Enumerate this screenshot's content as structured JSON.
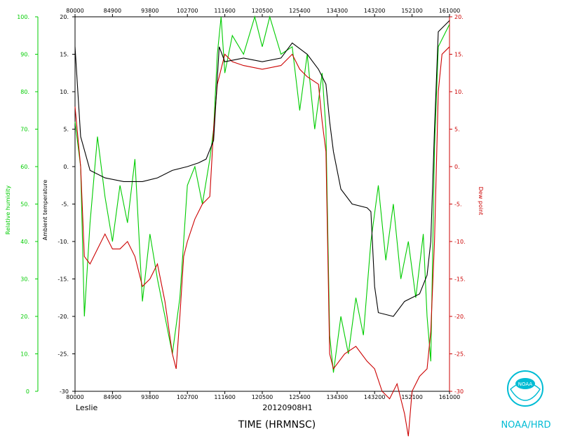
{
  "chart_data": {
    "type": "line",
    "storm_name": "Leslie",
    "flight_id": "20120908H1",
    "xlabel": "TIME (HRMNSC)",
    "org_label": "NOAA/HRD",
    "logo_text": "NOAA",
    "xlim": [
      80000,
      161000
    ],
    "x_ticks": [
      "80000",
      "84900",
      "93800",
      "102700",
      "111600",
      "120500",
      "125400",
      "134300",
      "143200",
      "152100",
      "161000"
    ],
    "rh_axis": {
      "label": "Relative humidity",
      "ylim": [
        0,
        100
      ],
      "ticks": [
        "0",
        "10.",
        "20.",
        "30.",
        "40.",
        "50.",
        "60.",
        "70.",
        "80.",
        "90.",
        "100."
      ],
      "color": "#00cc00"
    },
    "temp_axis": {
      "label": "Ambient temperature",
      "ylim": [
        -30,
        20
      ],
      "ticks": [
        "-30",
        "-25.",
        "-20.",
        "-15.",
        "-10.",
        "-5.",
        "0.",
        "5.",
        "10.",
        "15.",
        "20."
      ],
      "color": "#000000"
    },
    "dew_axis": {
      "label": "Dew point",
      "ylim": [
        -30,
        20
      ],
      "ticks": [
        "-30",
        "-25.",
        "-20.",
        "-15.",
        "-10.",
        "-5.",
        "0.",
        "5.",
        "10.",
        "15.",
        "20."
      ],
      "color": "#cc0000"
    },
    "series": [
      {
        "axis": "temp",
        "color": "#000000",
        "points": [
          [
            0,
            16
          ],
          [
            0.015,
            4
          ],
          [
            0.04,
            -0.5
          ],
          [
            0.08,
            -1.5
          ],
          [
            0.13,
            -2
          ],
          [
            0.18,
            -2
          ],
          [
            0.22,
            -1.5
          ],
          [
            0.26,
            -0.5
          ],
          [
            0.3,
            0
          ],
          [
            0.33,
            0.5
          ],
          [
            0.35,
            1
          ],
          [
            0.37,
            3.5
          ],
          [
            0.385,
            16
          ],
          [
            0.4,
            14
          ],
          [
            0.45,
            14.5
          ],
          [
            0.5,
            14
          ],
          [
            0.55,
            14.5
          ],
          [
            0.58,
            16.5
          ],
          [
            0.62,
            15
          ],
          [
            0.65,
            13
          ],
          [
            0.67,
            11
          ],
          [
            0.68,
            6
          ],
          [
            0.69,
            2
          ],
          [
            0.71,
            -3
          ],
          [
            0.74,
            -5
          ],
          [
            0.78,
            -5.5
          ],
          [
            0.79,
            -6
          ],
          [
            0.8,
            -16
          ],
          [
            0.81,
            -19.5
          ],
          [
            0.85,
            -20
          ],
          [
            0.88,
            -18
          ],
          [
            0.92,
            -17
          ],
          [
            0.94,
            -14.5
          ],
          [
            0.95,
            -10
          ],
          [
            0.96,
            5
          ],
          [
            0.97,
            18
          ],
          [
            1.0,
            19.5
          ]
        ]
      },
      {
        "axis": "dew",
        "color": "#cc0000",
        "points": [
          [
            0,
            8
          ],
          [
            0.015,
            0
          ],
          [
            0.025,
            -12
          ],
          [
            0.04,
            -13
          ],
          [
            0.06,
            -11
          ],
          [
            0.08,
            -9
          ],
          [
            0.1,
            -11
          ],
          [
            0.12,
            -11
          ],
          [
            0.14,
            -10
          ],
          [
            0.16,
            -12
          ],
          [
            0.18,
            -16
          ],
          [
            0.2,
            -15
          ],
          [
            0.22,
            -13
          ],
          [
            0.24,
            -18
          ],
          [
            0.26,
            -25
          ],
          [
            0.27,
            -27
          ],
          [
            0.28,
            -20
          ],
          [
            0.29,
            -12
          ],
          [
            0.3,
            -10
          ],
          [
            0.32,
            -7
          ],
          [
            0.34,
            -5
          ],
          [
            0.36,
            -4
          ],
          [
            0.37,
            5
          ],
          [
            0.38,
            11
          ],
          [
            0.4,
            15
          ],
          [
            0.42,
            14
          ],
          [
            0.45,
            13.5
          ],
          [
            0.5,
            13
          ],
          [
            0.55,
            13.5
          ],
          [
            0.58,
            15
          ],
          [
            0.6,
            13
          ],
          [
            0.62,
            12
          ],
          [
            0.65,
            11
          ],
          [
            0.66,
            6
          ],
          [
            0.67,
            2
          ],
          [
            0.68,
            -25
          ],
          [
            0.69,
            -27
          ],
          [
            0.72,
            -25
          ],
          [
            0.75,
            -24
          ],
          [
            0.78,
            -26
          ],
          [
            0.8,
            -27
          ],
          [
            0.82,
            -30
          ],
          [
            0.84,
            -31
          ],
          [
            0.86,
            -29
          ],
          [
            0.88,
            -33
          ],
          [
            0.89,
            -36
          ],
          [
            0.9,
            -30
          ],
          [
            0.92,
            -28
          ],
          [
            0.94,
            -27
          ],
          [
            0.95,
            -22
          ],
          [
            0.96,
            -10
          ],
          [
            0.97,
            10
          ],
          [
            0.98,
            15
          ],
          [
            1.0,
            16
          ]
        ]
      },
      {
        "axis": "rh",
        "color": "#00cc00",
        "points": [
          [
            0,
            72
          ],
          [
            0.015,
            60
          ],
          [
            0.025,
            20
          ],
          [
            0.04,
            45
          ],
          [
            0.06,
            68
          ],
          [
            0.08,
            52
          ],
          [
            0.1,
            40
          ],
          [
            0.12,
            55
          ],
          [
            0.14,
            45
          ],
          [
            0.16,
            62
          ],
          [
            0.18,
            24
          ],
          [
            0.2,
            42
          ],
          [
            0.22,
            30
          ],
          [
            0.24,
            20
          ],
          [
            0.26,
            10
          ],
          [
            0.28,
            25
          ],
          [
            0.29,
            40
          ],
          [
            0.3,
            55
          ],
          [
            0.32,
            60
          ],
          [
            0.34,
            50
          ],
          [
            0.36,
            62
          ],
          [
            0.37,
            70
          ],
          [
            0.38,
            90
          ],
          [
            0.39,
            100
          ],
          [
            0.4,
            85
          ],
          [
            0.42,
            95
          ],
          [
            0.45,
            90
          ],
          [
            0.48,
            100
          ],
          [
            0.5,
            92
          ],
          [
            0.52,
            100
          ],
          [
            0.55,
            90
          ],
          [
            0.58,
            92
          ],
          [
            0.6,
            75
          ],
          [
            0.62,
            90
          ],
          [
            0.64,
            70
          ],
          [
            0.66,
            85
          ],
          [
            0.67,
            70
          ],
          [
            0.68,
            15
          ],
          [
            0.69,
            5
          ],
          [
            0.71,
            20
          ],
          [
            0.73,
            10
          ],
          [
            0.75,
            25
          ],
          [
            0.77,
            15
          ],
          [
            0.79,
            40
          ],
          [
            0.81,
            55
          ],
          [
            0.83,
            35
          ],
          [
            0.85,
            50
          ],
          [
            0.87,
            30
          ],
          [
            0.89,
            40
          ],
          [
            0.91,
            25
          ],
          [
            0.93,
            42
          ],
          [
            0.94,
            20
          ],
          [
            0.95,
            8
          ],
          [
            0.96,
            65
          ],
          [
            0.97,
            92
          ],
          [
            1.0,
            98
          ]
        ]
      }
    ]
  }
}
